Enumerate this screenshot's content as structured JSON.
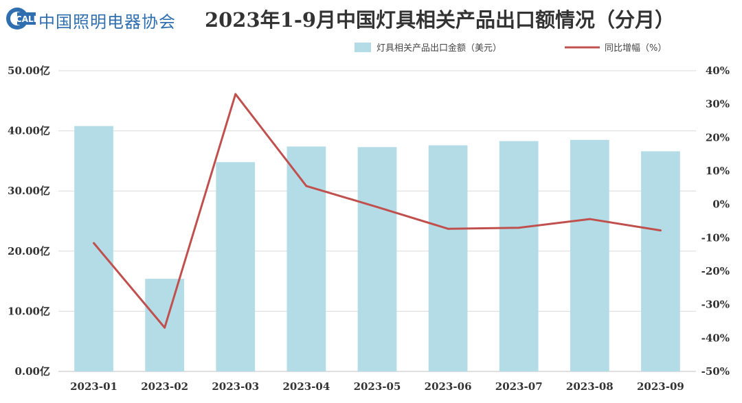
{
  "header": {
    "logo_badge": "CALI",
    "logo_text": "中国照明电器协会",
    "title": "2023年1-9月中国灯具相关产品出口额情况（分月）"
  },
  "colors": {
    "bar": "#b4dce6",
    "line": "#c0504d",
    "logo": "#2f6fb0",
    "grid": "#d9d9d9"
  },
  "chart_data": {
    "type": "bar",
    "title": "2023年1-9月中国灯具相关产品出口额情况（分月）",
    "categories": [
      "2023-01",
      "2023-02",
      "2023-03",
      "2023-04",
      "2023-05",
      "2023-06",
      "2023-07",
      "2023-08",
      "2023-09"
    ],
    "series": [
      {
        "name": "灯具相关产品出口金额（美元）",
        "type": "bar",
        "axis": "left",
        "values": [
          40.8,
          15.4,
          34.8,
          37.4,
          37.3,
          37.6,
          38.3,
          38.5,
          36.6
        ]
      },
      {
        "name": "同比增幅（%）",
        "type": "line",
        "axis": "right",
        "values": [
          -11.6,
          -36.9,
          33.0,
          5.5,
          -0.8,
          -7.3,
          -7.0,
          -4.4,
          -7.8
        ]
      }
    ],
    "y_left": {
      "ylim": [
        0,
        50
      ],
      "ticks": [
        "0.00亿",
        "10.00亿",
        "20.00亿",
        "30.00亿",
        "40.00亿",
        "50.00亿"
      ]
    },
    "y_right": {
      "ylim": [
        -50,
        40
      ],
      "ticks": [
        "-50%",
        "-40%",
        "-30%",
        "-20%",
        "-10%",
        "0%",
        "10%",
        "20%",
        "30%",
        "40%"
      ]
    },
    "grid": true,
    "legend_position": "top-right"
  }
}
